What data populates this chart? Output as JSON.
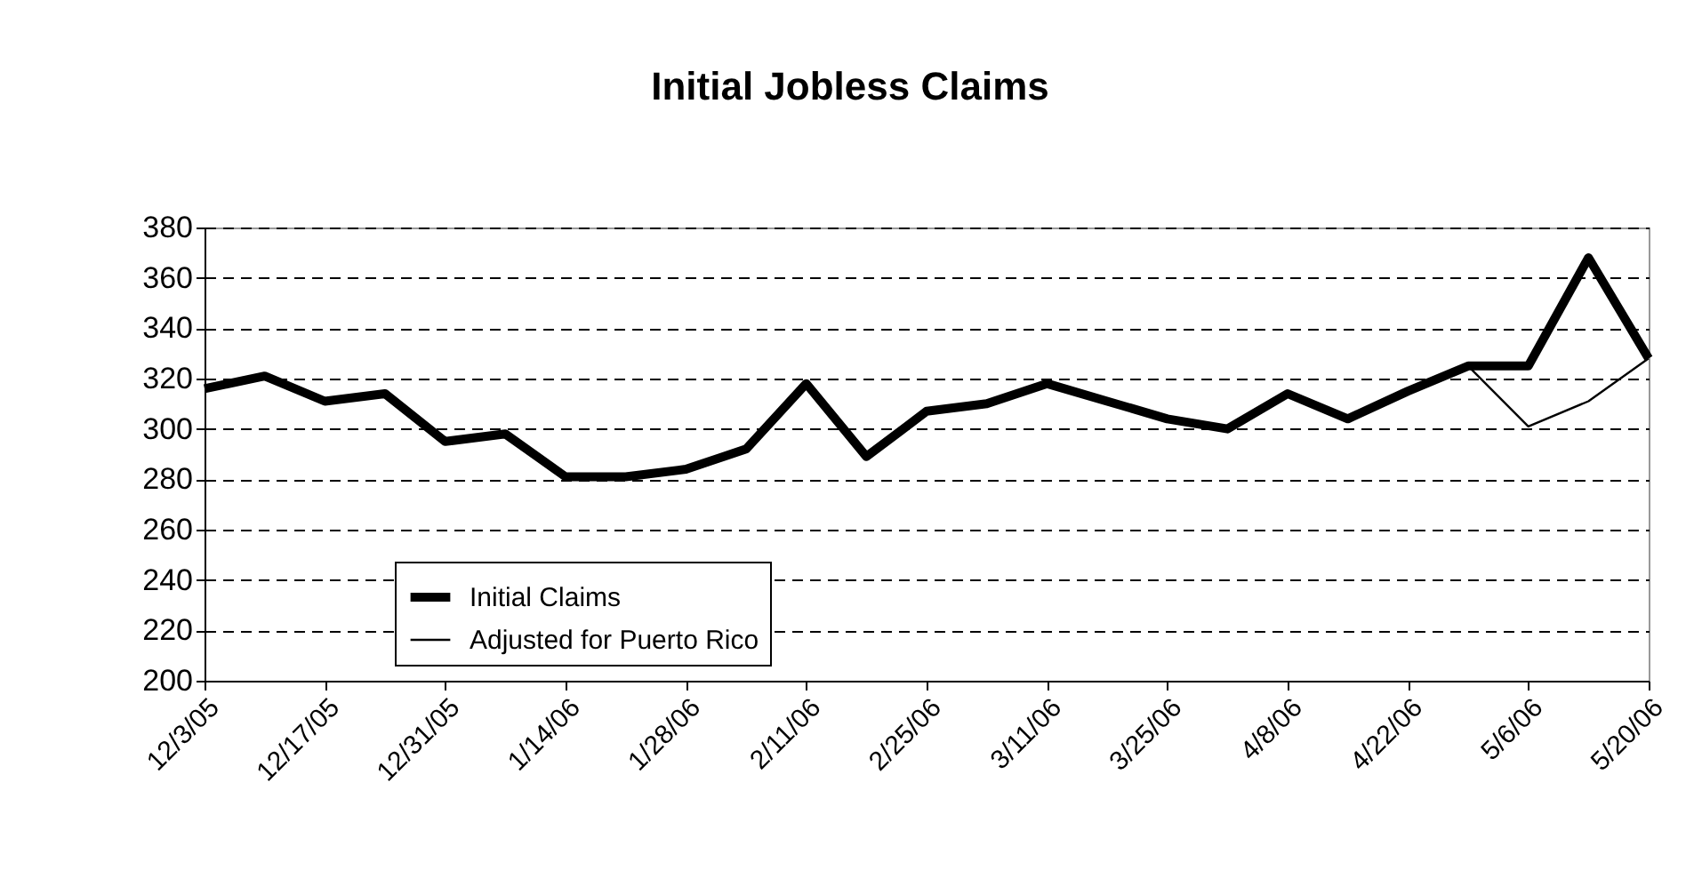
{
  "chart_data": {
    "type": "line",
    "title": "Initial Jobless Claims",
    "categories": [
      "12/3/05",
      null,
      "12/17/05",
      null,
      "12/31/05",
      null,
      "1/14/06",
      null,
      "1/28/06",
      null,
      "2/11/06",
      null,
      "2/25/06",
      null,
      "3/11/06",
      null,
      "3/25/06",
      null,
      "4/8/06",
      null,
      "4/22/06",
      null,
      "5/6/06",
      null,
      "5/20/06"
    ],
    "series": [
      {
        "name": "Initial Claims",
        "color": "#000000",
        "values": [
          316,
          321,
          311,
          314,
          295,
          298,
          281,
          281,
          284,
          292,
          318,
          289,
          307,
          310,
          318,
          311,
          304,
          300,
          314,
          304,
          315,
          325,
          325,
          368,
          328
        ]
      },
      {
        "name": "Adjusted for Puerto Rico",
        "color": "#000000",
        "values": [
          null,
          null,
          null,
          null,
          null,
          null,
          null,
          null,
          null,
          null,
          null,
          null,
          null,
          null,
          null,
          null,
          null,
          null,
          null,
          null,
          null,
          325,
          301,
          311,
          328
        ]
      }
    ],
    "ylim": [
      200,
      380
    ],
    "yticks": [
      200,
      220,
      240,
      260,
      280,
      300,
      320,
      340,
      360,
      380
    ],
    "grid": "y",
    "legend": "bottom left",
    "marker": "none",
    "line_style": "solid"
  }
}
